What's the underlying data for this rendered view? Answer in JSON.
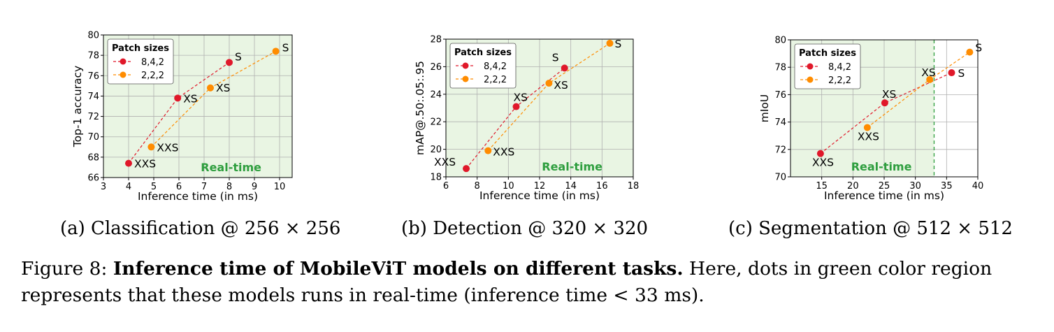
{
  "colors": {
    "real_time_region": "#e9f5e3",
    "series_842": "#e0182a",
    "series_222": "#ff8c00",
    "real_time_text": "#2e9e3e",
    "grid": "#b0b0b0"
  },
  "legend_title": "Patch sizes",
  "real_time_label": "Real-time",
  "chart_data": [
    {
      "type": "line",
      "xlabel": "Inference time (in ms)",
      "ylabel": "Top-1 accuracy",
      "xlim": [
        3,
        10.5
      ],
      "ylim": [
        66,
        80
      ],
      "xticks": [
        3,
        4,
        5,
        6,
        7,
        8,
        9,
        10
      ],
      "yticks": [
        66,
        68,
        70,
        72,
        74,
        76,
        78,
        80
      ],
      "grid": true,
      "legend_position": "top-left",
      "real_time_region_x_max": 10.5,
      "series": [
        {
          "name": "8,4,2",
          "points": [
            {
              "x": 4.0,
              "y": 67.4,
              "label": "XXS"
            },
            {
              "x": 5.95,
              "y": 73.8,
              "label": "XS"
            },
            {
              "x": 8.0,
              "y": 77.3,
              "label": "S"
            }
          ]
        },
        {
          "name": "2,2,2",
          "points": [
            {
              "x": 4.9,
              "y": 69.0,
              "label": "XXS"
            },
            {
              "x": 7.25,
              "y": 74.8,
              "label": "XS"
            },
            {
              "x": 9.85,
              "y": 78.4,
              "label": "S"
            }
          ]
        }
      ],
      "subcaption": "(a) Classification @ 256 × 256"
    },
    {
      "type": "line",
      "xlabel": "Inference time (in ms)",
      "ylabel": "mAP@.50:.05:.95",
      "xlim": [
        6,
        18
      ],
      "ylim": [
        18,
        28
      ],
      "xticks": [
        6,
        8,
        10,
        12,
        14,
        16,
        18
      ],
      "yticks": [
        18,
        20,
        22,
        24,
        26,
        28
      ],
      "grid": true,
      "legend_position": "top-left",
      "real_time_region_x_max": 18,
      "series": [
        {
          "name": "8,4,2",
          "points": [
            {
              "x": 7.3,
              "y": 18.6,
              "label": "XXS"
            },
            {
              "x": 10.5,
              "y": 23.1,
              "label": "XS"
            },
            {
              "x": 13.6,
              "y": 25.9,
              "label": "S"
            }
          ]
        },
        {
          "name": "2,2,2",
          "points": [
            {
              "x": 8.7,
              "y": 19.9,
              "label": "XXS"
            },
            {
              "x": 12.6,
              "y": 24.8,
              "label": "XS"
            },
            {
              "x": 16.5,
              "y": 27.7,
              "label": "S"
            }
          ]
        }
      ],
      "subcaption": "(b) Detection @ 320 × 320"
    },
    {
      "type": "line",
      "xlabel": "Inference time (in ms)",
      "ylabel": "mIoU",
      "xlim": [
        10,
        40
      ],
      "ylim": [
        70,
        80
      ],
      "xticks": [
        15,
        20,
        25,
        30,
        35,
        40
      ],
      "yticks": [
        70,
        72,
        74,
        76,
        78,
        80
      ],
      "grid": true,
      "legend_position": "top-left",
      "real_time_region_x_max": 33,
      "threshold_line_x": 33,
      "series": [
        {
          "name": "8,4,2",
          "points": [
            {
              "x": 14.8,
              "y": 71.7,
              "label": "XXS"
            },
            {
              "x": 25.1,
              "y": 75.4,
              "label": "XS"
            },
            {
              "x": 35.8,
              "y": 77.6,
              "label": "S"
            }
          ]
        },
        {
          "name": "2,2,2",
          "points": [
            {
              "x": 22.3,
              "y": 73.6,
              "label": "XXS"
            },
            {
              "x": 32.3,
              "y": 77.1,
              "label": "XS"
            },
            {
              "x": 38.7,
              "y": 79.1,
              "label": "S"
            }
          ]
        }
      ],
      "subcaption": "(c) Segmentation @ 512 × 512"
    }
  ],
  "caption": {
    "prefix": "Figure 8: ",
    "bold": "Inference time of MobileViT models on different tasks.",
    "rest": " Here, dots in green color region represents that these models runs in real-time (inference time < 33 ms)."
  }
}
